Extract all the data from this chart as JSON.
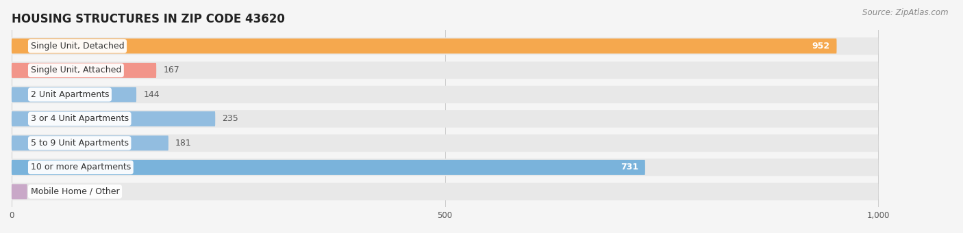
{
  "title": "HOUSING STRUCTURES IN ZIP CODE 43620",
  "source": "Source: ZipAtlas.com",
  "categories": [
    "Single Unit, Detached",
    "Single Unit, Attached",
    "2 Unit Apartments",
    "3 or 4 Unit Apartments",
    "5 to 9 Unit Apartments",
    "10 or more Apartments",
    "Mobile Home / Other"
  ],
  "values": [
    952,
    167,
    144,
    235,
    181,
    731,
    0
  ],
  "bar_colors": [
    "#f5a84e",
    "#f2958a",
    "#92bde0",
    "#92bde0",
    "#92bde0",
    "#7ab3db",
    "#c9a8c8"
  ],
  "background_color": "#f5f5f5",
  "bar_bg_color": "#e8e8e8",
  "data_max": 1000,
  "xlim_max": 1070,
  "xticks": [
    0,
    500,
    1000
  ],
  "xtick_labels": [
    "0",
    "500",
    "1,000"
  ],
  "title_fontsize": 12,
  "label_fontsize": 9,
  "value_fontsize": 9,
  "source_fontsize": 8.5
}
